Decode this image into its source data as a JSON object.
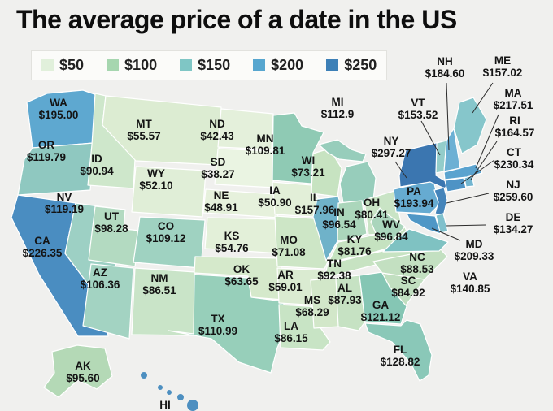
{
  "title": "The average price of a date in the US",
  "legend": {
    "items": [
      {
        "label": "$50",
        "color": "#e1f0db"
      },
      {
        "label": "$100",
        "color": "#a6d6af"
      },
      {
        "label": "$150",
        "color": "#7fc6c5"
      },
      {
        "label": "$200",
        "color": "#57a6cf"
      },
      {
        "label": "$250",
        "color": "#3d80b7"
      }
    ]
  },
  "chart_data": {
    "type": "heatmap",
    "subtype": "us-choropleth-map",
    "title": "The average price of a date in the US",
    "value_unit": "USD",
    "legend_thresholds": [
      50,
      100,
      150,
      200,
      250
    ],
    "states": [
      {
        "abbr": "WA",
        "value": "$195.00",
        "number": 195.0,
        "color": "#5ea8d0"
      },
      {
        "abbr": "OR",
        "value": "$119.79",
        "number": 119.79,
        "color": "#8fc8c0"
      },
      {
        "abbr": "CA",
        "value": "$226.35",
        "number": 226.35,
        "color": "#4a8dc1"
      },
      {
        "abbr": "NV",
        "value": "$119.19",
        "number": 119.19,
        "color": "#9dd0c4"
      },
      {
        "abbr": "ID",
        "value": "$90.94",
        "number": 90.94,
        "color": "#cee7cb"
      },
      {
        "abbr": "MT",
        "value": "$55.57",
        "number": 55.57,
        "color": "#dcecd2"
      },
      {
        "abbr": "WY",
        "value": "$52.10",
        "number": 52.1,
        "color": "#e0eed7"
      },
      {
        "abbr": "UT",
        "value": "$98.28",
        "number": 98.28,
        "color": "#b3dac1"
      },
      {
        "abbr": "CO",
        "value": "$109.12",
        "number": 109.12,
        "color": "#9fd2c1"
      },
      {
        "abbr": "AZ",
        "value": "$106.36",
        "number": 106.36,
        "color": "#a3d3c2"
      },
      {
        "abbr": "NM",
        "value": "$86.51",
        "number": 86.51,
        "color": "#c9e4c8"
      },
      {
        "abbr": "ND",
        "value": "$42.43",
        "number": 42.43,
        "color": "#e4f0db"
      },
      {
        "abbr": "SD",
        "value": "$38.27",
        "number": 38.27,
        "color": "#eaf4e2"
      },
      {
        "abbr": "NE",
        "value": "$48.91",
        "number": 48.91,
        "color": "#e6f1dc"
      },
      {
        "abbr": "KS",
        "value": "$54.76",
        "number": 54.76,
        "color": "#e3f0d9"
      },
      {
        "abbr": "OK",
        "value": "$63.65",
        "number": 63.65,
        "color": "#d5e9cb"
      },
      {
        "abbr": "TX",
        "value": "$110.99",
        "number": 110.99,
        "color": "#97cfba"
      },
      {
        "abbr": "MN",
        "value": "$109.81",
        "number": 109.81,
        "color": "#8fcab4"
      },
      {
        "abbr": "IA",
        "value": "$50.90",
        "number": 50.9,
        "color": "#e2efd8"
      },
      {
        "abbr": "MO",
        "value": "$71.08",
        "number": 71.08,
        "color": "#cde6c6"
      },
      {
        "abbr": "AR",
        "value": "$59.01",
        "number": 59.01,
        "color": "#daebd1"
      },
      {
        "abbr": "LA",
        "value": "$86.15",
        "number": 86.15,
        "color": "#c8e4c5"
      },
      {
        "abbr": "WI",
        "value": "$73.21",
        "number": 73.21,
        "color": "#c7e3c1"
      },
      {
        "abbr": "IL",
        "value": "$157.96",
        "number": 157.96,
        "color": "#6fb2c9"
      },
      {
        "abbr": "MI",
        "value": "$112.9",
        "number": 112.9,
        "color": "#97cdbb"
      },
      {
        "abbr": "IN",
        "value": "$96.54",
        "number": 96.54,
        "color": "#abd6bb"
      },
      {
        "abbr": "OH",
        "value": "$80.41",
        "number": 80.41,
        "color": "#c9e4c5"
      },
      {
        "abbr": "KY",
        "value": "$81.76",
        "number": 81.76,
        "color": "#c5e2c0"
      },
      {
        "abbr": "TN",
        "value": "$92.38",
        "number": 92.38,
        "color": "#c7e3c2"
      },
      {
        "abbr": "MS",
        "value": "$68.29",
        "number": 68.29,
        "color": "#d2e7c9"
      },
      {
        "abbr": "AL",
        "value": "$87.93",
        "number": 87.93,
        "color": "#c6e2c3"
      },
      {
        "abbr": "GA",
        "value": "$121.12",
        "number": 121.12,
        "color": "#85c6b4"
      },
      {
        "abbr": "FL",
        "value": "$128.82",
        "number": 128.82,
        "color": "#8ac8b8"
      },
      {
        "abbr": "SC",
        "value": "$84.92",
        "number": 84.92,
        "color": "#c1dfc0"
      },
      {
        "abbr": "NC",
        "value": "$88.53",
        "number": 88.53,
        "color": "#c3e0c1"
      },
      {
        "abbr": "VA",
        "value": "$140.85",
        "number": 140.85,
        "color": "#7fc2c2"
      },
      {
        "abbr": "WV",
        "value": "$96.84",
        "number": 96.84,
        "color": "#aad5bc"
      },
      {
        "abbr": "PA",
        "value": "$193.94",
        "number": 193.94,
        "color": "#66abd1"
      },
      {
        "abbr": "NY",
        "value": "$297.27",
        "number": 297.27,
        "color": "#3b76b0"
      },
      {
        "abbr": "NJ",
        "value": "$259.60",
        "number": 259.6,
        "color": "#4484ba"
      },
      {
        "abbr": "DE",
        "value": "$134.27",
        "number": 134.27,
        "color": "#7fc0cc"
      },
      {
        "abbr": "MD",
        "value": "$209.33",
        "number": 209.33,
        "color": "#4f97c6"
      },
      {
        "abbr": "CT",
        "value": "$230.34",
        "number": 230.34,
        "color": "#4e93c5"
      },
      {
        "abbr": "RI",
        "value": "$164.57",
        "number": 164.57,
        "color": "#72b5d0"
      },
      {
        "abbr": "MA",
        "value": "$217.51",
        "number": 217.51,
        "color": "#5aa3cf"
      },
      {
        "abbr": "VT",
        "value": "$153.52",
        "number": 153.52,
        "color": "#93cdca"
      },
      {
        "abbr": "NH",
        "value": "$184.60",
        "number": 184.6,
        "color": "#6cb0d4"
      },
      {
        "abbr": "ME",
        "value": "$157.02",
        "number": 157.02,
        "color": "#86c6cb"
      },
      {
        "abbr": "AK",
        "value": "$95.60",
        "number": 95.6,
        "color": "#b4d9b6"
      },
      {
        "abbr": "HI",
        "value": "",
        "number": null,
        "color": "#4d8fc0"
      }
    ]
  }
}
